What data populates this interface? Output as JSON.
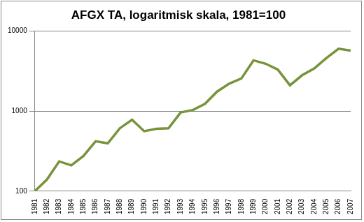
{
  "chart_data": {
    "type": "line",
    "title": "AFGX TA, logaritmisk skala, 1981=100",
    "categories": [
      "1981",
      "1982",
      "1983",
      "1984",
      "1985",
      "1986",
      "1987",
      "1988",
      "1989",
      "1990",
      "1991",
      "1992",
      "1993",
      "1994",
      "1995",
      "1996",
      "1997",
      "1998",
      "1999",
      "2000",
      "2001",
      "2002",
      "2003",
      "2004",
      "2005",
      "2006",
      "2007"
    ],
    "values": [
      100,
      140,
      235,
      210,
      275,
      420,
      395,
      610,
      780,
      560,
      600,
      610,
      960,
      1030,
      1230,
      1750,
      2200,
      2550,
      4300,
      3900,
      3300,
      2100,
      2800,
      3400,
      4600,
      6000,
      5700
    ],
    "color": "#77933c",
    "log": "y",
    "ylim": [
      100,
      10000
    ],
    "yticks": [
      100,
      1000,
      10000
    ],
    "grid": true
  }
}
